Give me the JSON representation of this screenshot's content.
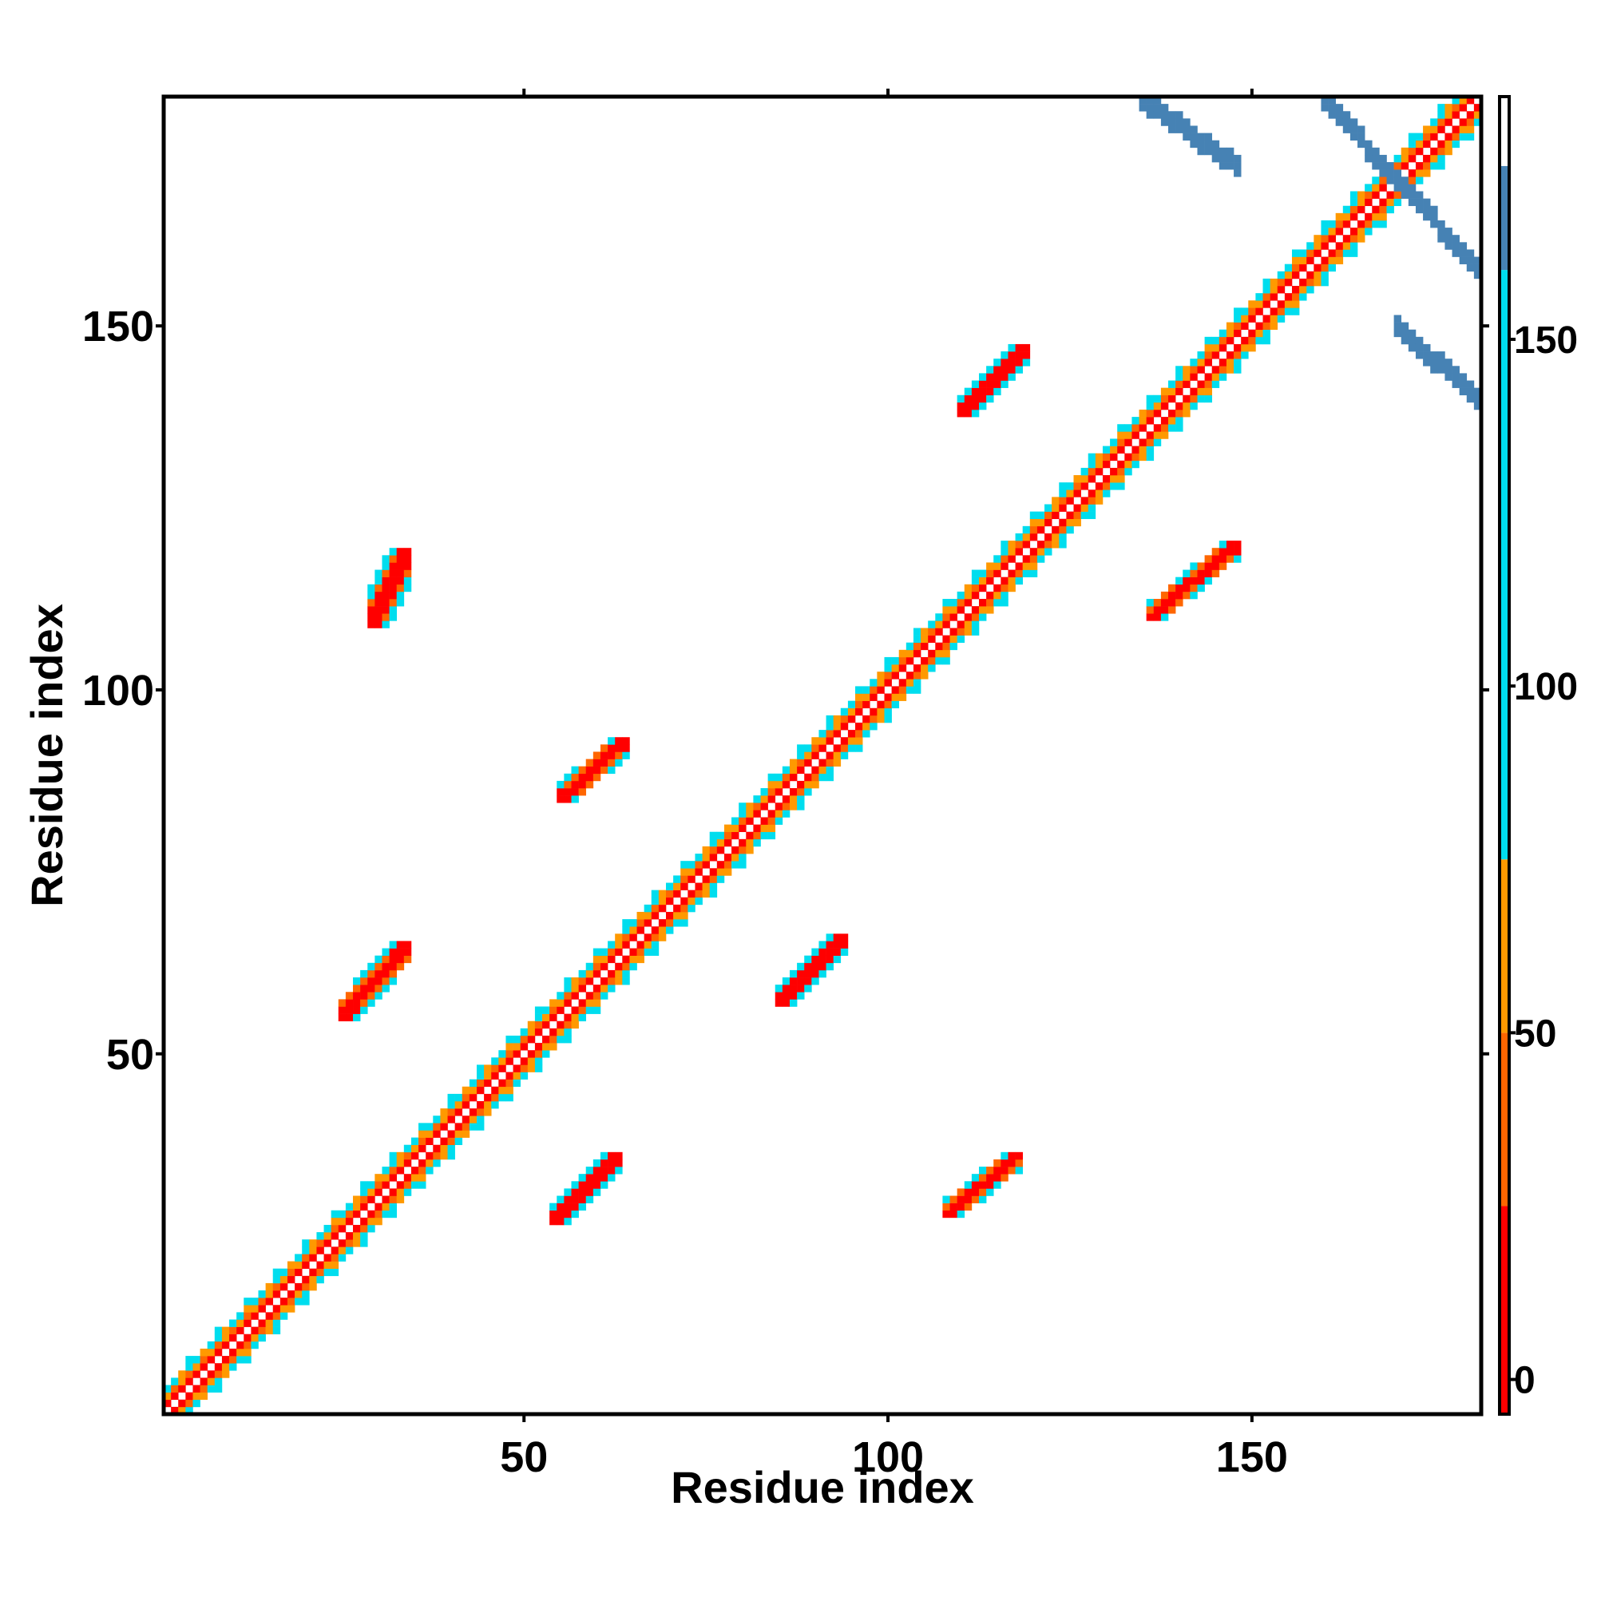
{
  "chart_data": {
    "type": "heatmap",
    "xlabel": "Residue index",
    "ylabel": "Residue index",
    "xlim": [
      1,
      181
    ],
    "ylim": [
      1,
      181
    ],
    "x_ticks": [
      50,
      100,
      150
    ],
    "y_ticks": [
      50,
      100,
      150
    ],
    "colorbar": {
      "ticks": [
        0,
        50,
        100,
        150
      ],
      "range": [
        -5,
        185
      ],
      "levels": [
        {
          "min": -5,
          "max": 25,
          "color": "#ff0000"
        },
        {
          "min": 25,
          "max": 50,
          "color": "#ff6600"
        },
        {
          "min": 50,
          "max": 75,
          "color": "#ff9900"
        },
        {
          "min": 75,
          "max": 160,
          "color": "#00ddee"
        },
        {
          "min": 160,
          "max": 175,
          "color": "#4682b4"
        },
        {
          "min": 175,
          "max": 185,
          "color": "#ffffff"
        }
      ]
    },
    "features": [
      {
        "kind": "diagonal-band",
        "start": 1,
        "end": 181,
        "pattern": "main"
      },
      {
        "kind": "block",
        "x": [
          25,
          34
        ],
        "y": [
          55,
          65
        ],
        "value": 10
      },
      {
        "kind": "block",
        "x": [
          29,
          34
        ],
        "y": [
          109,
          119
        ],
        "value": 10
      },
      {
        "kind": "block",
        "x": [
          55,
          64
        ],
        "y": [
          85,
          93
        ],
        "value": 10
      },
      {
        "kind": "block",
        "x": [
          54,
          63
        ],
        "y": [
          27,
          36
        ],
        "value": 10
      },
      {
        "kind": "block",
        "x": [
          85,
          94
        ],
        "y": [
          57,
          66
        ],
        "value": 10
      },
      {
        "kind": "block",
        "x": [
          108,
          118
        ],
        "y": [
          28,
          36
        ],
        "value": 10
      },
      {
        "kind": "block",
        "x": [
          110,
          119
        ],
        "y": [
          138,
          147
        ],
        "value": 10
      },
      {
        "kind": "block",
        "x": [
          136,
          148
        ],
        "y": [
          110,
          120
        ],
        "value": 10
      },
      {
        "kind": "antidiagonal",
        "x": [
          135,
          148
        ],
        "y": [
          172,
          181
        ],
        "value": 168
      },
      {
        "kind": "antidiagonal",
        "x": [
          160,
          181
        ],
        "y": [
          158,
          181
        ],
        "value": 168
      },
      {
        "kind": "antidiagonal",
        "x": [
          170,
          181
        ],
        "y": [
          140,
          150
        ],
        "value": 168
      }
    ]
  }
}
